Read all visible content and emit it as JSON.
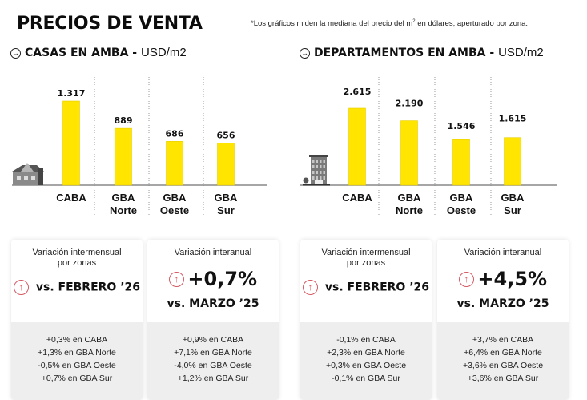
{
  "header": {
    "title": "PRECIOS DE VENTA",
    "footnote_pre": "*Los gráficos miden la mediana del precio del m",
    "footnote_sup": "2",
    "footnote_post": " en dólares, aperturado por zona."
  },
  "sections": [
    {
      "title": "CASAS EN AMBA",
      "sep": " - ",
      "unit": "USD/m2",
      "icon": "house-icon"
    },
    {
      "title": "DEPARTAMENTOS EN AMBA",
      "sep": " - ",
      "unit": "USD/m2",
      "icon": "building-icon"
    }
  ],
  "colors": {
    "bar": "#ffe500",
    "bar_edge": "#e8cf00",
    "up_arrow": "#d65a64",
    "axis": "#888888"
  },
  "chart_data": [
    {
      "type": "bar",
      "title": "CASAS EN AMBA - USD/m2",
      "categories": [
        "CABA",
        "GBA Norte",
        "GBA Oeste",
        "GBA Sur"
      ],
      "category_lines": [
        [
          "CABA"
        ],
        [
          "GBA",
          "Norte"
        ],
        [
          "GBA",
          "Oeste"
        ],
        [
          "GBA",
          "Sur"
        ]
      ],
      "values": [
        1317,
        889,
        686,
        656
      ],
      "labels": [
        "1.317",
        "889",
        "686",
        "656"
      ],
      "xlabel": "",
      "ylabel": "USD/m2",
      "ylim": [
        0,
        1400
      ],
      "grid": false
    },
    {
      "type": "bar",
      "title": "DEPARTAMENTOS EN AMBA - USD/m2",
      "categories": [
        "CABA",
        "GBA Norte",
        "GBA Oeste",
        "GBA Sur"
      ],
      "category_lines": [
        [
          "CABA"
        ],
        [
          "GBA",
          "Norte"
        ],
        [
          "GBA",
          "Oeste"
        ],
        [
          "GBA",
          "Sur"
        ]
      ],
      "values": [
        2615,
        2190,
        1546,
        1615
      ],
      "labels": [
        "2.615",
        "2.190",
        "1.546",
        "1.615"
      ],
      "xlabel": "",
      "ylabel": "USD/m2",
      "ylim": [
        0,
        3100
      ],
      "grid": false
    }
  ],
  "cards": [
    {
      "caption": [
        "Variación intermensual",
        "por zonas"
      ],
      "headline": "",
      "vs": "vs. FEBRERO ’26",
      "rows": [
        "+0,3% en CABA",
        "+1,3% en GBA Norte",
        "-0,5% en GBA Oeste",
        "+0,7% en GBA Sur"
      ]
    },
    {
      "caption": [
        "Variación interanual"
      ],
      "headline": "+0,7%",
      "vs": "vs. MARZO ’25",
      "rows": [
        "+0,9% en CABA",
        "+7,1% en GBA Norte",
        "-4,0% en GBA Oeste",
        "+1,2% en GBA Sur"
      ]
    },
    {
      "caption": [
        "Variación intermensual",
        "por zonas"
      ],
      "headline": "",
      "vs": "vs. FEBRERO ’26",
      "rows": [
        "-0,1% en CABA",
        "+2,3% en GBA Norte",
        "+0,3% en GBA Oeste",
        "-0,1% en GBA Sur"
      ]
    },
    {
      "caption": [
        "Variación interanual"
      ],
      "headline": "+4,5%",
      "vs": "vs. MARZO ’25",
      "rows": [
        "+3,7% en CABA",
        "+6,4% en GBA Norte",
        "+3,6% en GBA Oeste",
        "+3,6% en GBA Sur"
      ]
    }
  ]
}
